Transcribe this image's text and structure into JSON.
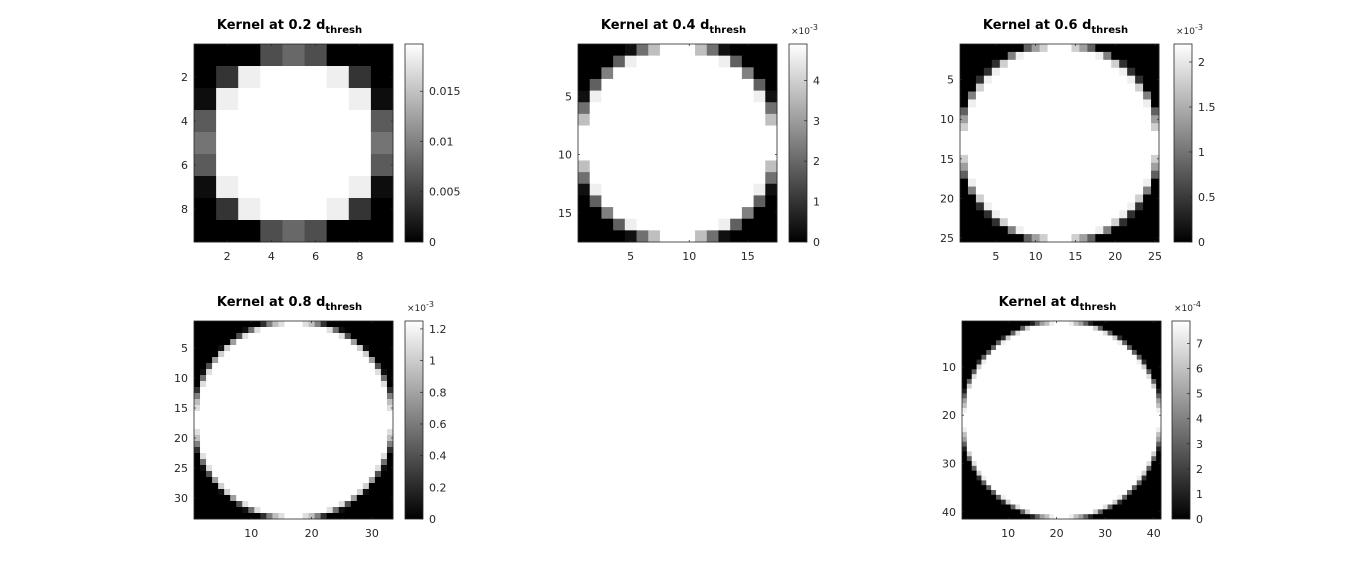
{
  "chart_data": [
    {
      "type": "heatmap",
      "title": "Kernel at 0.2 d",
      "title_subscript": "thresh",
      "grid_size": 9,
      "x_ticks": [
        "2",
        "4",
        "6",
        "8"
      ],
      "y_ticks": [
        "2",
        "4",
        "6",
        "8"
      ],
      "colorbar": {
        "ticks": [
          "0",
          "0.005",
          "0.01",
          "0.015"
        ],
        "max": 0.0197,
        "exponent_label": ""
      },
      "colormap": "gray",
      "values": [
        [
          0.0,
          0.0,
          0.0,
          0.006,
          0.008,
          0.006,
          0.0,
          0.0,
          0.0
        ],
        [
          0.0,
          0.004,
          0.0185,
          0.0197,
          0.0197,
          0.0197,
          0.0185,
          0.004,
          0.0
        ],
        [
          0.001,
          0.0185,
          0.0197,
          0.0197,
          0.0197,
          0.0197,
          0.0197,
          0.0185,
          0.001
        ],
        [
          0.007,
          0.0197,
          0.0197,
          0.0197,
          0.0197,
          0.0197,
          0.0197,
          0.0197,
          0.007
        ],
        [
          0.009,
          0.0197,
          0.0197,
          0.0197,
          0.0197,
          0.0197,
          0.0197,
          0.0197,
          0.009
        ],
        [
          0.007,
          0.0197,
          0.0197,
          0.0197,
          0.0197,
          0.0197,
          0.0197,
          0.0197,
          0.007
        ],
        [
          0.001,
          0.0185,
          0.0197,
          0.0197,
          0.0197,
          0.0197,
          0.0197,
          0.0185,
          0.001
        ],
        [
          0.0,
          0.004,
          0.0185,
          0.0197,
          0.0197,
          0.0197,
          0.0185,
          0.004,
          0.0
        ],
        [
          0.0,
          0.0,
          0.0,
          0.006,
          0.008,
          0.006,
          0.0,
          0.0,
          0.0
        ]
      ]
    },
    {
      "type": "heatmap",
      "title": "Kernel at 0.4 d",
      "title_subscript": "thresh",
      "grid_size": 17,
      "x_ticks": [
        "5",
        "10",
        "15"
      ],
      "y_ticks": [
        "5",
        "10",
        "15"
      ],
      "colorbar": {
        "ticks": [
          "0",
          "1",
          "2",
          "3",
          "4"
        ],
        "max": 4.9,
        "exponent_label": "×10^-3"
      },
      "colormap": "gray",
      "values": "filled disk of radius 8.5 px with soft (partial-coverage) edge; interior value 4.9e-3, outside 0"
    },
    {
      "type": "heatmap",
      "title": "Kernel at 0.6 d",
      "title_subscript": "thresh",
      "grid_size": 25,
      "x_ticks": [
        "5",
        "10",
        "15",
        "20",
        "25"
      ],
      "y_ticks": [
        "5",
        "10",
        "15",
        "20",
        "25"
      ],
      "colorbar": {
        "ticks": [
          "0",
          "0.5",
          "1",
          "1.5",
          "2"
        ],
        "max": 2.2,
        "exponent_label": "×10^-3"
      },
      "colormap": "gray",
      "values": "filled disk of radius 12.5 px with soft edge; interior value 2.2e-3, outside 0"
    },
    {
      "type": "heatmap",
      "title": "Kernel at 0.8 d",
      "title_subscript": "thresh",
      "grid_size": 33,
      "x_ticks": [
        "10",
        "20",
        "30"
      ],
      "y_ticks": [
        "5",
        "10",
        "15",
        "20",
        "25",
        "30"
      ],
      "colorbar": {
        "ticks": [
          "0",
          "0.2",
          "0.4",
          "0.6",
          "0.8",
          "1",
          "1.2"
        ],
        "max": 1.25,
        "exponent_label": "×10^-3"
      },
      "colormap": "gray",
      "values": "filled disk of radius 16.5 px with soft edge; interior value 1.25e-3, outside 0"
    },
    {
      "type": "heatmap",
      "title": "Kernel at d",
      "title_subscript": "thresh",
      "grid_size": 41,
      "x_ticks": [
        "10",
        "20",
        "30",
        "40"
      ],
      "y_ticks": [
        "10",
        "20",
        "30",
        "40"
      ],
      "colorbar": {
        "ticks": [
          "0",
          "1",
          "2",
          "3",
          "4",
          "5",
          "6",
          "7"
        ],
        "max": 7.9,
        "exponent_label": "×10^-4"
      },
      "colormap": "gray",
      "values": "filled disk of radius 20.5 px with soft edge; interior value 7.9e-4, outside 0"
    }
  ]
}
